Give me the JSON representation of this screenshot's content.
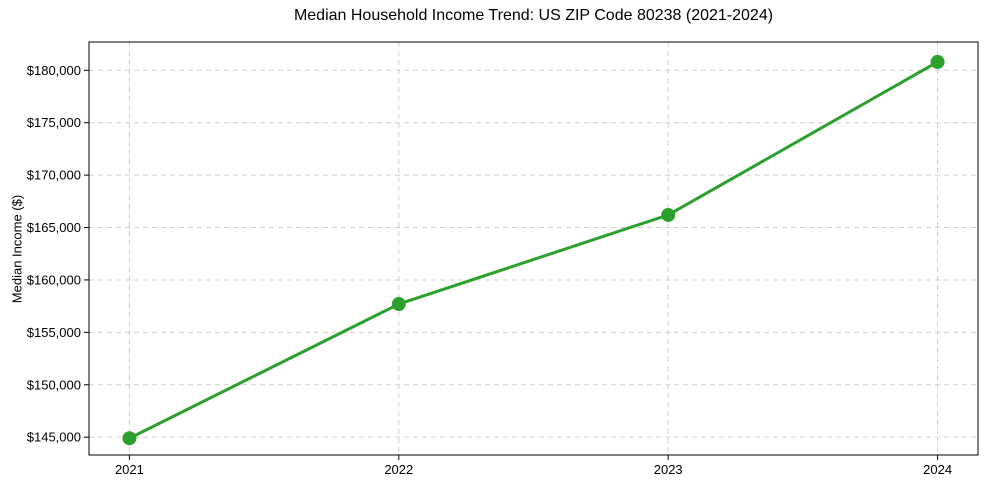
{
  "chart_data": {
    "type": "line",
    "title": "Median Household Income Trend: US ZIP Code 80238 (2021-2024)",
    "ylabel": "Median Income ($)",
    "xlabel": "",
    "x": [
      2021,
      2022,
      2023,
      2024
    ],
    "x_labels": [
      "2021",
      "2022",
      "2023",
      "2024"
    ],
    "values": [
      144900,
      157700,
      166200,
      180800
    ],
    "y_ticks": [
      145000,
      150000,
      155000,
      160000,
      165000,
      170000,
      175000,
      180000
    ],
    "y_tick_labels": [
      "$145,000",
      "$150,000",
      "$155,000",
      "$160,000",
      "$165,000",
      "$170,000",
      "$175,000",
      "$180,000"
    ],
    "xlim": [
      2020.85,
      2024.15
    ],
    "ylim": [
      143300,
      182700
    ],
    "grid": true,
    "legend_visible": false,
    "line_color": "#2ca02c",
    "marker_color": "#2ca02c",
    "grid_color": "#cfcfcf",
    "frame_color": "#000000",
    "marker": "circle"
  }
}
